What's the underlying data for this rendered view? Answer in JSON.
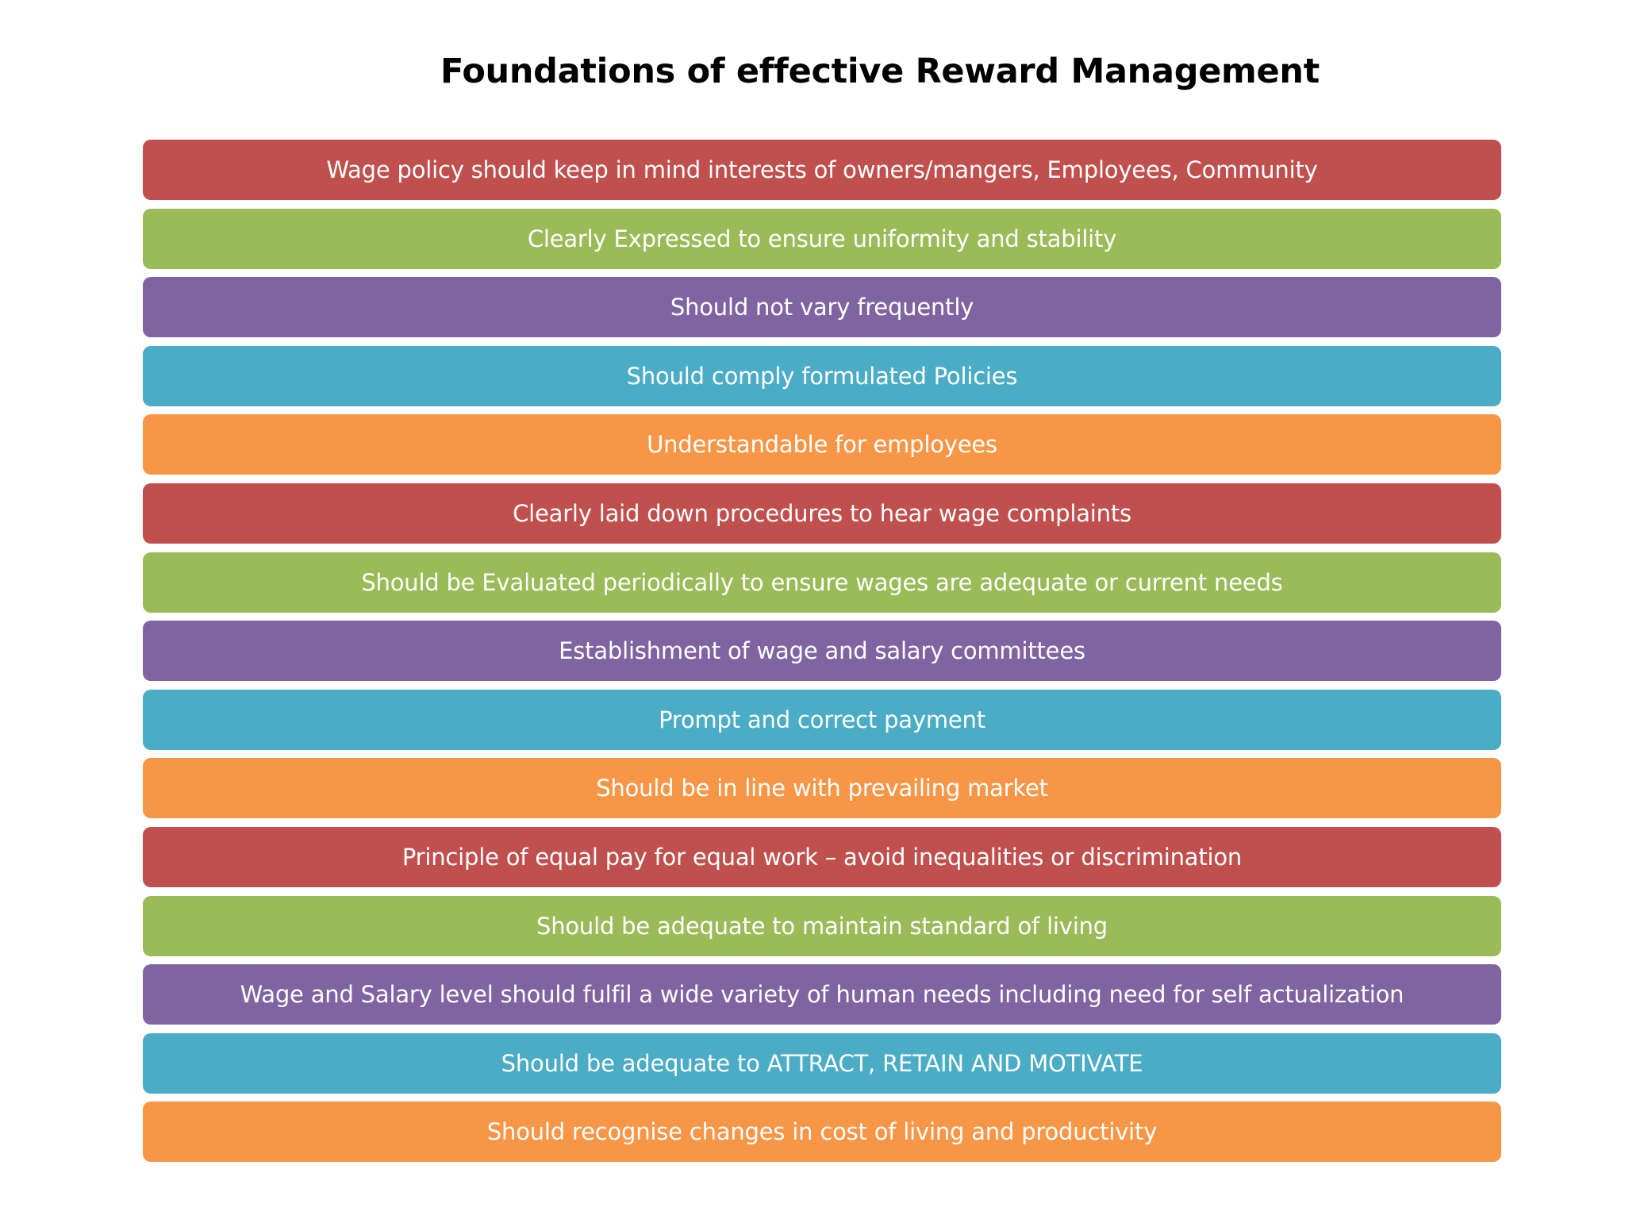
{
  "title": "Foundations of effective Reward Management",
  "items": [
    {
      "text": "Wage policy should keep in mind interests of owners/mangers, Employees, Community",
      "color": "#C0504D"
    },
    {
      "text": "Clearly Expressed to ensure uniformity and stability",
      "color": "#9BBB59"
    },
    {
      "text": "Should not vary frequently",
      "color": "#8064A2"
    },
    {
      "text": "Should comply formulated Policies",
      "color": "#4BACC6"
    },
    {
      "text": "Understandable for employees",
      "color": "#F79646"
    },
    {
      "text": "Clearly laid down procedures to hear wage complaints",
      "color": "#C0504D"
    },
    {
      "text": "Should be Evaluated periodically to ensure wages are adequate or current needs",
      "color": "#9BBB59"
    },
    {
      "text": "Establishment of wage and salary committees",
      "color": "#8064A2"
    },
    {
      "text": "Prompt and correct payment",
      "color": "#4BACC6"
    },
    {
      "text": "Should be in line with prevailing market",
      "color": "#F79646"
    },
    {
      "text": "Principle of equal pay for equal work – avoid inequalities or discrimination",
      "color": "#C0504D"
    },
    {
      "text": "Should be adequate to maintain standard of living",
      "color": "#9BBB59"
    },
    {
      "text": "Wage and Salary level should fulfil a wide variety of human needs including need for self actualization",
      "color": "#8064A2"
    },
    {
      "text": "Should be adequate to ATTRACT, RETAIN AND MOTIVATE",
      "color": "#4BACC6"
    },
    {
      "text": "Should recognise changes in cost of living and productivity",
      "color": "#F79646"
    }
  ]
}
